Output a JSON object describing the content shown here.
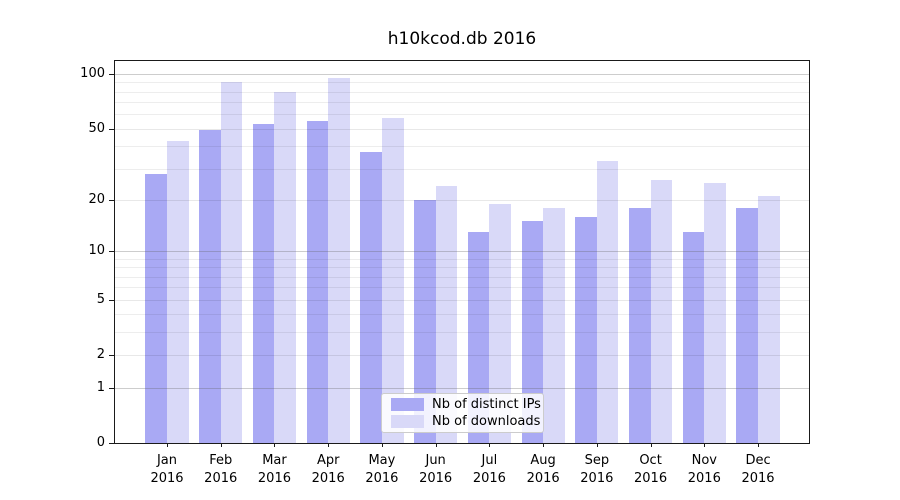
{
  "title": "h10kcod.db 2016",
  "chart_data": {
    "type": "bar",
    "title": "h10kcod.db 2016",
    "scale": "log10(1+y)",
    "grid": true,
    "legend_position": "lower center",
    "categories": [
      "Jan",
      "Feb",
      "Mar",
      "Apr",
      "May",
      "Jun",
      "Jul",
      "Aug",
      "Sep",
      "Oct",
      "Nov",
      "Dec"
    ],
    "x_year_label": "2016",
    "series": [
      {
        "name": "Nb of distinct IPs",
        "color": "#a9a9f4",
        "values": [
          28,
          49,
          53,
          55,
          37,
          20,
          13,
          15,
          16,
          18,
          13,
          18
        ]
      },
      {
        "name": "Nb of downloads",
        "color": "#d9d9f8",
        "values": [
          43,
          90,
          80,
          95,
          57,
          24,
          19,
          18,
          33,
          26,
          25,
          21
        ]
      }
    ],
    "y_ticks": [
      0,
      1,
      2,
      5,
      10,
      20,
      50,
      100
    ],
    "y_decade_gridlines": [
      1,
      10,
      100
    ],
    "y_minor_gridlines": [
      3,
      4,
      6,
      7,
      8,
      9,
      30,
      40,
      60,
      70,
      80,
      90
    ],
    "ylim": [
      0,
      118
    ],
    "xlabel": "",
    "ylabel": ""
  },
  "colors": {
    "background": "#ffffff",
    "axis": "#1a1a1a",
    "bar_dark": "#a9a9f4",
    "bar_light": "#d9d9f8"
  }
}
